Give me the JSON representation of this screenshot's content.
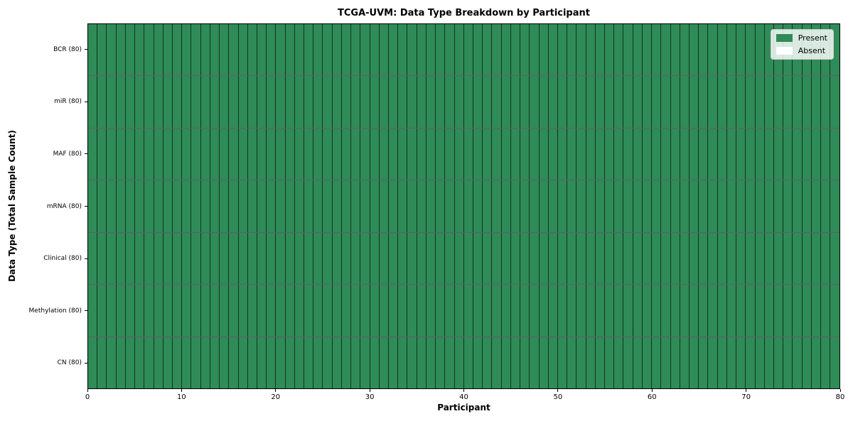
{
  "chart_data": {
    "type": "heatmap",
    "title": "TCGA-UVM: Data Type Breakdown by Participant",
    "xlabel": "Participant",
    "ylabel": "Data Type (Total Sample Count)",
    "rows": [
      {
        "label": "BCR (80)",
        "present": 80,
        "absent": 0
      },
      {
        "label": "miR (80)",
        "present": 80,
        "absent": 0
      },
      {
        "label": "MAF (80)",
        "present": 80,
        "absent": 0
      },
      {
        "label": "mRNA (80)",
        "present": 80,
        "absent": 0
      },
      {
        "label": "Clinical (80)",
        "present": 80,
        "absent": 0
      },
      {
        "label": "Methylation (80)",
        "present": 80,
        "absent": 0
      },
      {
        "label": "CN (80)",
        "present": 80,
        "absent": 0
      }
    ],
    "n_participants": 80,
    "x": {
      "min": 0,
      "max": 80,
      "ticks": [
        0,
        10,
        20,
        30,
        40,
        50,
        60,
        70,
        80
      ]
    },
    "legend": {
      "position": "upper-right",
      "items": [
        {
          "label": "Present",
          "color": "#2f8b58"
        },
        {
          "label": "Absent",
          "color": "#ffffff"
        }
      ]
    },
    "colors": {
      "present": "#2f8b58",
      "absent": "#ffffff",
      "cell_border": "rgba(0,0,0,0.62)",
      "spine": "#000000"
    },
    "grid": "cell-borders",
    "layout": "rows are data types, columns are participants; all cells present"
  }
}
